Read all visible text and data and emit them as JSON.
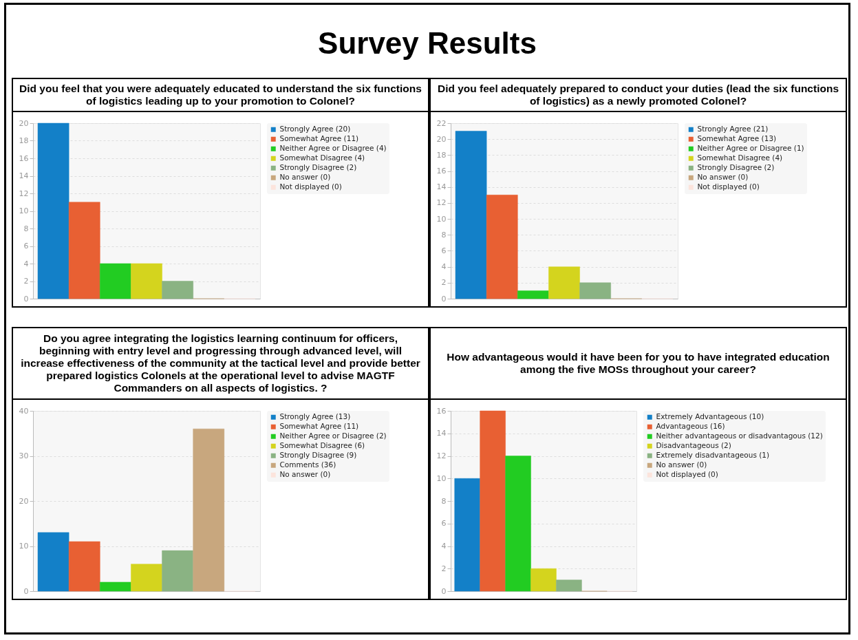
{
  "chart_data": [
    {
      "type": "other",
      "title": "Survey Results"
    },
    {
      "type": "bar",
      "title": "Did you feel that you were adequately educated to understand the six functions of logistics leading up to your promotion to Colonel?",
      "categories": [
        null
      ],
      "series": [
        {
          "name": "Strongly Agree (20)",
          "color": "#1380c8",
          "values": [
            20
          ]
        },
        {
          "name": "Somewhat Agree (11)",
          "color": "#e86033",
          "values": [
            11
          ]
        },
        {
          "name": "Neither Agree or Disagree (4)",
          "color": "#22cc22",
          "values": [
            4
          ]
        },
        {
          "name": "Somewhat Disagree (4)",
          "color": "#d4d41e",
          "values": [
            4
          ]
        },
        {
          "name": "Strongly Disagree (2)",
          "color": "#8ab383",
          "values": [
            2
          ]
        },
        {
          "name": "No answer (0)",
          "color": "#c8a77e",
          "values": [
            0
          ]
        },
        {
          "name": "Not displayed (0)",
          "color": "#fce4dc",
          "values": [
            0
          ]
        }
      ],
      "ylim": [
        0,
        20
      ],
      "yticks": [
        0,
        2,
        4,
        6,
        8,
        10,
        12,
        14,
        16,
        18,
        20
      ],
      "grid": "y",
      "legend": "right",
      "tick_labels": "y"
    },
    {
      "type": "bar",
      "title": "Did you feel adequately prepared to conduct your duties (lead the six functions of logistics) as a newly promoted Colonel?",
      "categories": [
        null
      ],
      "series": [
        {
          "name": "Strongly Agree (21)",
          "color": "#1380c8",
          "values": [
            21
          ]
        },
        {
          "name": "Somewhat Agree (13)",
          "color": "#e86033",
          "values": [
            13
          ]
        },
        {
          "name": "Neither Agree or Disagree (1)",
          "color": "#22cc22",
          "values": [
            1
          ]
        },
        {
          "name": "Somewhat Disagree (4)",
          "color": "#d4d41e",
          "values": [
            4
          ]
        },
        {
          "name": "Strongly Disagree (2)",
          "color": "#8ab383",
          "values": [
            2
          ]
        },
        {
          "name": "No answer (0)",
          "color": "#c8a77e",
          "values": [
            0
          ]
        },
        {
          "name": "Not displayed (0)",
          "color": "#fce4dc",
          "values": [
            0
          ]
        }
      ],
      "ylim": [
        0,
        22
      ],
      "yticks": [
        0,
        2,
        4,
        6,
        8,
        10,
        12,
        14,
        16,
        18,
        20,
        22
      ],
      "grid": "y",
      "legend": "right",
      "tick_labels": "y"
    },
    {
      "type": "bar",
      "title": "Do you agree integrating the logistics learning continuum for officers, beginning with entry level and progressing through advanced level, will increase effectiveness of the community at the tactical level and provide better prepared logistics Colonels at the operational level to advise MAGTF Commanders on all aspects of logistics.  ?",
      "categories": [
        null
      ],
      "series": [
        {
          "name": "Strongly Agree (13)",
          "color": "#1380c8",
          "values": [
            13
          ]
        },
        {
          "name": "Somewhat Agree (11)",
          "color": "#e86033",
          "values": [
            11
          ]
        },
        {
          "name": "Neither Agree or Disagree (2)",
          "color": "#22cc22",
          "values": [
            2
          ]
        },
        {
          "name": "Somewhat Disagree (6)",
          "color": "#d4d41e",
          "values": [
            6
          ]
        },
        {
          "name": "Strongly Disagree (9)",
          "color": "#8ab383",
          "values": [
            9
          ]
        },
        {
          "name": "Comments (36)",
          "color": "#c8a77e",
          "values": [
            36
          ]
        },
        {
          "name": "No answer (0)",
          "color": "#fce4dc",
          "values": [
            0
          ]
        }
      ],
      "ylim": [
        0,
        40
      ],
      "yticks": [
        0,
        10,
        20,
        30,
        40
      ],
      "grid": "y",
      "legend": "right",
      "tick_labels": "y"
    },
    {
      "type": "bar",
      "title": "How advantageous would it have been for you to have integrated education among the five MOSs throughout your career?",
      "categories": [
        null
      ],
      "series": [
        {
          "name": "Extremely Advantageous (10)",
          "color": "#1380c8",
          "values": [
            10
          ]
        },
        {
          "name": "Advantageous (16)",
          "color": "#e86033",
          "values": [
            16
          ]
        },
        {
          "name": "Neither advantageous or disadvantagous (12)",
          "color": "#22cc22",
          "values": [
            12
          ]
        },
        {
          "name": "Disadvantageous (2)",
          "color": "#d4d41e",
          "values": [
            2
          ]
        },
        {
          "name": "Extremely disadvantageous (1)",
          "color": "#8ab383",
          "values": [
            1
          ]
        },
        {
          "name": "No answer (0)",
          "color": "#c8a77e",
          "values": [
            0
          ]
        },
        {
          "name": "Not displayed (0)",
          "color": "#fce4dc",
          "values": [
            0
          ]
        }
      ],
      "ylim": [
        0,
        16
      ],
      "yticks": [
        0,
        2,
        4,
        6,
        8,
        10,
        12,
        14,
        16
      ],
      "grid": "y",
      "legend": "right",
      "tick_labels": "y"
    }
  ]
}
